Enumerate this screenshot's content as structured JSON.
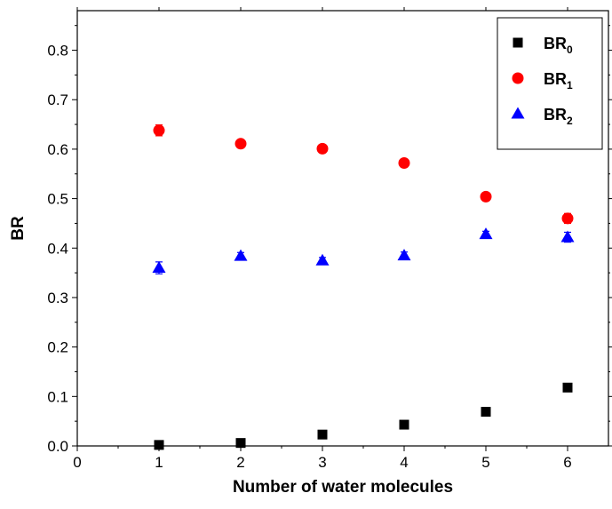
{
  "chart_data": {
    "type": "scatter",
    "xlabel": "Number of water molecules",
    "ylabel": "BR",
    "xlim": [
      0,
      6.5
    ],
    "ylim": [
      0,
      0.88
    ],
    "x_ticks": [
      0,
      1,
      2,
      3,
      4,
      5,
      6
    ],
    "y_ticks": [
      0.0,
      0.1,
      0.2,
      0.3,
      0.4,
      0.5,
      0.6,
      0.7,
      0.8
    ],
    "y_tick_labels": [
      "0.0",
      "0.1",
      "0.2",
      "0.3",
      "0.4",
      "0.5",
      "0.6",
      "0.7",
      "0.8"
    ],
    "x_tick_labels": [
      "0",
      "1",
      "2",
      "3",
      "4",
      "5",
      "6"
    ],
    "grid": false,
    "legend_position": "top-right",
    "series": [
      {
        "name": "BR",
        "subscript": "0",
        "marker": "square",
        "color": "#000000",
        "x": [
          1,
          2,
          3,
          4,
          5,
          6
        ],
        "y": [
          0.002,
          0.006,
          0.023,
          0.043,
          0.069,
          0.118
        ],
        "err": [
          0,
          0,
          0,
          0,
          0,
          0
        ]
      },
      {
        "name": "BR",
        "subscript": "1",
        "marker": "circle",
        "color": "#ff0000",
        "x": [
          1,
          2,
          3,
          4,
          5,
          6
        ],
        "y": [
          0.638,
          0.611,
          0.601,
          0.572,
          0.504,
          0.46
        ],
        "err": [
          0.011,
          0.005,
          0.004,
          0.004,
          0.004,
          0.01
        ]
      },
      {
        "name": "BR",
        "subscript": "2",
        "marker": "triangle",
        "color": "#0000ff",
        "x": [
          1,
          2,
          3,
          4,
          5,
          6
        ],
        "y": [
          0.36,
          0.384,
          0.375,
          0.385,
          0.428,
          0.422
        ],
        "err": [
          0.012,
          0.007,
          0.006,
          0.007,
          0.006,
          0.01
        ]
      }
    ]
  }
}
